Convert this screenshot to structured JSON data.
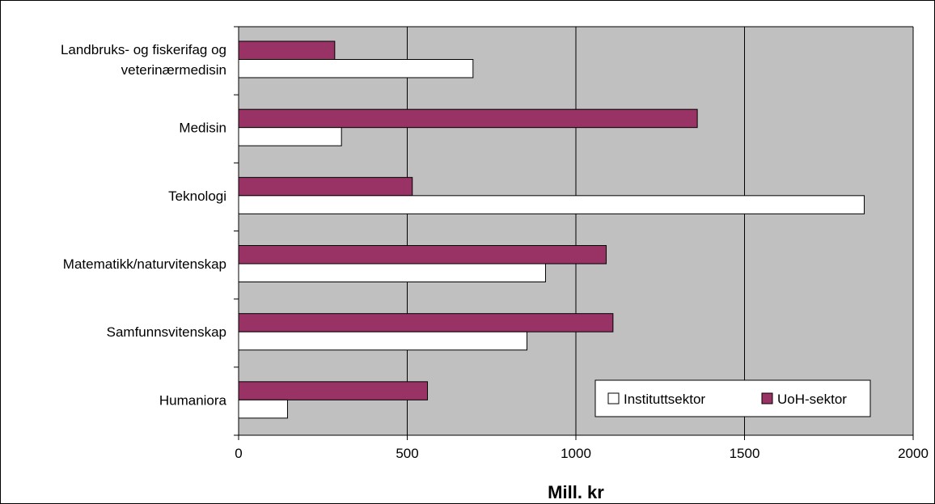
{
  "chart_data": {
    "type": "bar",
    "orientation": "horizontal",
    "categories": [
      [
        "Landbruks- og fiskerifag og",
        "veterinærmedisin"
      ],
      [
        "Medisin"
      ],
      [
        "Teknologi"
      ],
      [
        "Matematikk/naturvitenskap"
      ],
      [
        "Samfunnsvitenskap"
      ],
      [
        "Humaniora"
      ]
    ],
    "series": [
      {
        "name": "UoH-sektor",
        "color": "#993366",
        "values": [
          285,
          1360,
          515,
          1090,
          1110,
          560
        ]
      },
      {
        "name": "Instituttsektor",
        "color": "#ffffff",
        "values": [
          695,
          305,
          1855,
          910,
          855,
          145
        ]
      }
    ],
    "legend_order": [
      "Instituttsektor",
      "UoH-sektor"
    ],
    "xlabel": "Mill. kr",
    "xlim": [
      0,
      2000
    ],
    "xticks": [
      0,
      500,
      1000,
      1500,
      2000
    ],
    "grid": true,
    "plot_background": "#c0c0c0",
    "legend_position": "bottom-right"
  }
}
